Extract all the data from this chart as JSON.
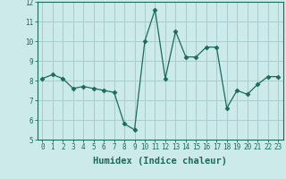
{
  "x": [
    0,
    1,
    2,
    3,
    4,
    5,
    6,
    7,
    8,
    9,
    10,
    11,
    12,
    13,
    14,
    15,
    16,
    17,
    18,
    19,
    20,
    21,
    22,
    23
  ],
  "y": [
    8.1,
    8.3,
    8.1,
    7.6,
    7.7,
    7.6,
    7.5,
    7.4,
    5.8,
    5.5,
    10.0,
    11.6,
    8.1,
    10.5,
    9.2,
    9.2,
    9.7,
    9.7,
    6.6,
    7.5,
    7.3,
    7.8,
    8.2,
    8.2
  ],
  "xlabel": "Humidex (Indice chaleur)",
  "ylim": [
    5,
    12
  ],
  "xlim_lo": -0.5,
  "xlim_hi": 23.5,
  "yticks": [
    5,
    6,
    7,
    8,
    9,
    10,
    11,
    12
  ],
  "xticks": [
    0,
    1,
    2,
    3,
    4,
    5,
    6,
    7,
    8,
    9,
    10,
    11,
    12,
    13,
    14,
    15,
    16,
    17,
    18,
    19,
    20,
    21,
    22,
    23
  ],
  "line_color": "#1a6b5a",
  "marker": "D",
  "marker_size": 2.5,
  "bg_color": "#cceaea",
  "grid_color": "#aacccc",
  "tick_label_fontsize": 5.5,
  "xlabel_fontsize": 7.5
}
